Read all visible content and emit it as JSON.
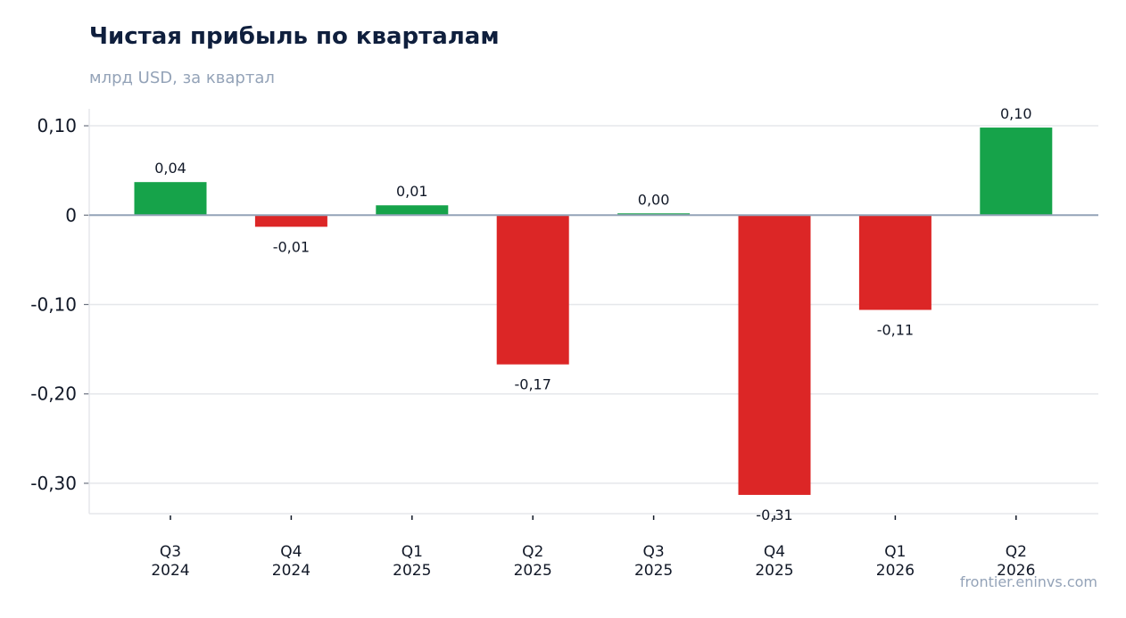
{
  "header": {
    "title": "Чистая прибыль по кварталам",
    "subtitle": "млрд USD, за квартал"
  },
  "footer": {
    "watermark": "frontier.eninvs.com"
  },
  "colors": {
    "positive": "#16a34a",
    "negative": "#dc2626",
    "grid": "#e5e7eb",
    "zero_line": "#94a3b8",
    "text": "#111827"
  },
  "chart_data": {
    "type": "bar",
    "title": "Чистая прибыль по кварталам",
    "subtitle": "млрд USD, за квартал",
    "categories": [
      [
        "Q3",
        "2024"
      ],
      [
        "Q4",
        "2024"
      ],
      [
        "Q1",
        "2025"
      ],
      [
        "Q2",
        "2025"
      ],
      [
        "Q3",
        "2025"
      ],
      [
        "Q4",
        "2025"
      ],
      [
        "Q1",
        "2026"
      ],
      [
        "Q2",
        "2026"
      ]
    ],
    "values": [
      0.037,
      -0.013,
      0.011,
      -0.167,
      0.002,
      -0.313,
      -0.106,
      0.098
    ],
    "data_labels": [
      "0,04",
      "-0,01",
      "0,01",
      "-0,17",
      "0,00",
      "-0,31",
      "-0,11",
      "0,10"
    ],
    "yticks": [
      {
        "value": 0.1,
        "label": "0,10"
      },
      {
        "value": 0,
        "label": "0"
      },
      {
        "value": -0.1,
        "label": "-0,10"
      },
      {
        "value": -0.2,
        "label": "-0,20"
      },
      {
        "value": -0.3,
        "label": "-0,30"
      }
    ],
    "ylim": [
      -0.334,
      0.119
    ],
    "grid": true,
    "legend": "none"
  }
}
